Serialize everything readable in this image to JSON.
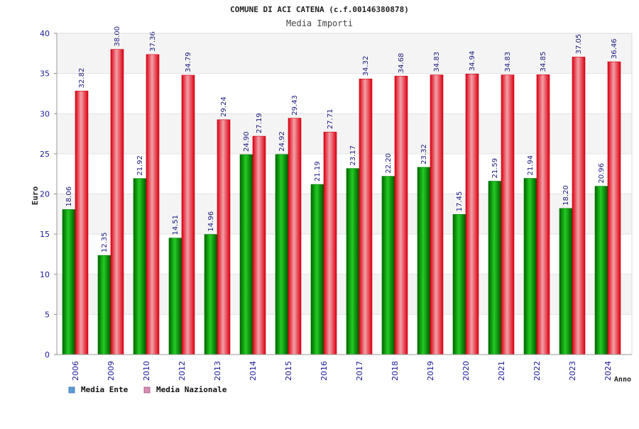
{
  "chart_data": {
    "type": "bar",
    "title": "COMUNE DI ACI CATENA (c.f.00146380878)",
    "subtitle": "Media Importi",
    "xlabel": "Anno",
    "ylabel": "Euro",
    "ylim": [
      0,
      40
    ],
    "yticks": [
      0,
      5,
      10,
      15,
      20,
      25,
      30,
      35,
      40
    ],
    "grid": true,
    "legend_position": "bottom-left",
    "categories": [
      "2006",
      "2009",
      "2010",
      "2012",
      "2013",
      "2014",
      "2015",
      "2016",
      "2017",
      "2018",
      "2019",
      "2020",
      "2021",
      "2022",
      "2023",
      "2024"
    ],
    "series": [
      {
        "name": "Media Ente",
        "color": "#00aa00",
        "legend_color": "#5b9bd5",
        "values": [
          18.06,
          12.35,
          21.92,
          14.51,
          14.96,
          24.9,
          24.92,
          21.19,
          23.17,
          22.2,
          23.32,
          17.45,
          21.59,
          21.94,
          18.2,
          20.96
        ],
        "labels": [
          "18.06",
          "12.35",
          "21.92",
          "14.51",
          "14.96",
          "24.90",
          "24.92",
          "21.19",
          "23.17",
          "22.20",
          "23.32",
          "17.45",
          "21.59",
          "21.94",
          "18.20",
          "20.96"
        ]
      },
      {
        "name": "Media Nazionale",
        "color": "#ee1122",
        "legend_color": "#d98cb3",
        "values": [
          32.82,
          38.0,
          37.36,
          34.79,
          29.24,
          27.19,
          29.43,
          27.71,
          34.32,
          34.68,
          34.83,
          34.94,
          34.83,
          34.85,
          37.05,
          36.46
        ],
        "labels": [
          "32.82",
          "38.00",
          "37.36",
          "34.79",
          "29.24",
          "27.19",
          "29.43",
          "27.71",
          "34.32",
          "34.68",
          "34.83",
          "34.94",
          "34.83",
          "34.85",
          "37.05",
          "36.46"
        ]
      }
    ]
  }
}
